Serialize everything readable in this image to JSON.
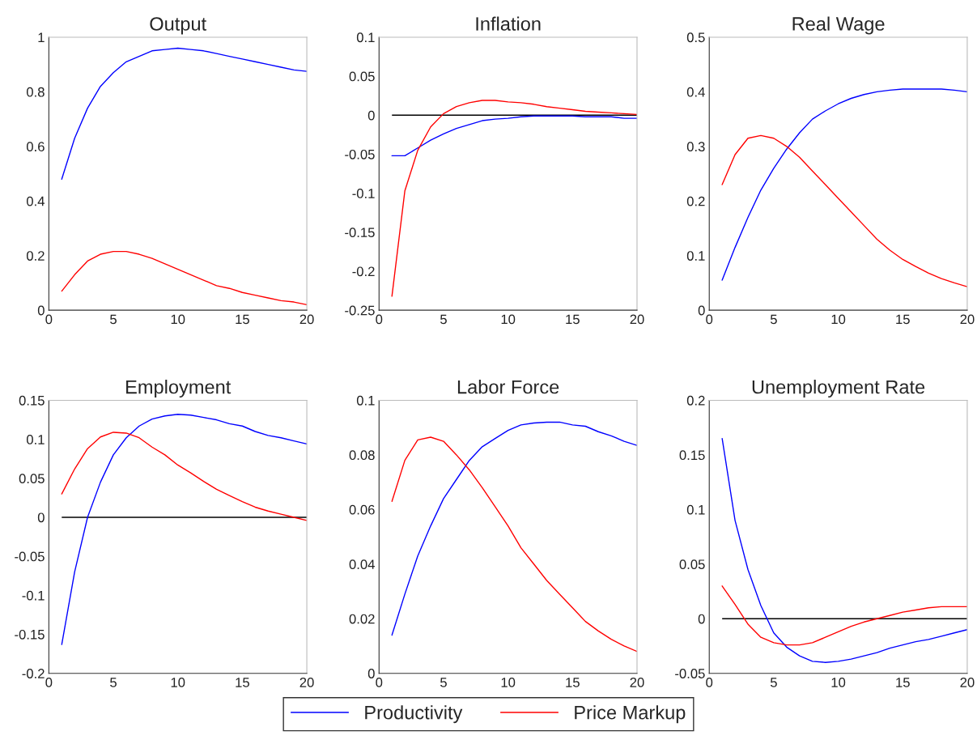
{
  "chart_data": [
    {
      "type": "line",
      "title": "Output",
      "x": [
        1,
        2,
        3,
        4,
        5,
        6,
        7,
        8,
        9,
        10,
        11,
        12,
        13,
        14,
        15,
        16,
        17,
        18,
        19,
        20
      ],
      "xlim": [
        0,
        20
      ],
      "xticks": [
        0,
        5,
        10,
        15,
        20
      ],
      "ylim": [
        0,
        1
      ],
      "yticks": [
        0,
        0.2,
        0.4,
        0.6,
        0.8,
        1
      ],
      "grid": false,
      "legend": "bottom",
      "series": [
        {
          "name": "Productivity",
          "color": "#0000ff",
          "values": [
            0.48,
            0.63,
            0.74,
            0.82,
            0.87,
            0.91,
            0.93,
            0.95,
            0.955,
            0.96,
            0.955,
            0.95,
            0.94,
            0.93,
            0.92,
            0.91,
            0.9,
            0.89,
            0.88,
            0.875
          ]
        },
        {
          "name": "Price Markup",
          "color": "#ff0000",
          "values": [
            0.07,
            0.13,
            0.18,
            0.205,
            0.215,
            0.215,
            0.205,
            0.19,
            0.17,
            0.15,
            0.13,
            0.11,
            0.09,
            0.08,
            0.065,
            0.055,
            0.045,
            0.035,
            0.03,
            0.02
          ]
        }
      ]
    },
    {
      "type": "line",
      "title": "Inflation",
      "x": [
        1,
        2,
        3,
        4,
        5,
        6,
        7,
        8,
        9,
        10,
        11,
        12,
        13,
        14,
        15,
        16,
        17,
        18,
        19,
        20
      ],
      "xlim": [
        0,
        20
      ],
      "xticks": [
        0,
        5,
        10,
        15,
        20
      ],
      "ylim": [
        -0.25,
        0.1
      ],
      "yticks": [
        -0.25,
        -0.2,
        -0.15,
        -0.1,
        -0.05,
        0,
        0.05,
        0.1
      ],
      "grid": false,
      "ref_lines": [
        {
          "axis": "y",
          "value": 0,
          "color": "#000000"
        }
      ],
      "series": [
        {
          "color": "#0000ff",
          "values": [
            -0.052,
            -0.052,
            -0.042,
            -0.032,
            -0.024,
            -0.017,
            -0.012,
            -0.007,
            -0.005,
            -0.004,
            -0.002,
            -0.001,
            -0.001,
            -0.001,
            -0.001,
            -0.002,
            -0.002,
            -0.002,
            -0.004,
            -0.004
          ]
        },
        {
          "color": "#ff0000",
          "values": [
            -0.232,
            -0.097,
            -0.045,
            -0.015,
            0.002,
            0.011,
            0.016,
            0.019,
            0.019,
            0.017,
            0.016,
            0.014,
            0.011,
            0.009,
            0.007,
            0.005,
            0.004,
            0.003,
            0.002,
            0.001
          ]
        }
      ]
    },
    {
      "type": "line",
      "title": "Real Wage",
      "x": [
        1,
        2,
        3,
        4,
        5,
        6,
        7,
        8,
        9,
        10,
        11,
        12,
        13,
        14,
        15,
        16,
        17,
        18,
        19,
        20
      ],
      "xlim": [
        0,
        20
      ],
      "xticks": [
        0,
        5,
        10,
        15,
        20
      ],
      "ylim": [
        0,
        0.5
      ],
      "yticks": [
        0,
        0.1,
        0.2,
        0.3,
        0.4,
        0.5
      ],
      "grid": false,
      "series": [
        {
          "color": "#0000ff",
          "values": [
            0.055,
            0.115,
            0.17,
            0.22,
            0.26,
            0.295,
            0.325,
            0.35,
            0.365,
            0.378,
            0.388,
            0.395,
            0.4,
            0.403,
            0.405,
            0.405,
            0.405,
            0.405,
            0.403,
            0.4
          ]
        },
        {
          "color": "#ff0000",
          "values": [
            0.23,
            0.285,
            0.315,
            0.32,
            0.315,
            0.3,
            0.28,
            0.255,
            0.23,
            0.205,
            0.18,
            0.155,
            0.13,
            0.11,
            0.093,
            0.08,
            0.068,
            0.058,
            0.05,
            0.043
          ]
        }
      ]
    },
    {
      "type": "line",
      "title": "Employment",
      "x": [
        1,
        2,
        3,
        4,
        5,
        6,
        7,
        8,
        9,
        10,
        11,
        12,
        13,
        14,
        15,
        16,
        17,
        18,
        19,
        20
      ],
      "xlim": [
        0,
        20
      ],
      "xticks": [
        0,
        5,
        10,
        15,
        20
      ],
      "ylim": [
        -0.2,
        0.15
      ],
      "yticks": [
        -0.2,
        -0.15,
        -0.1,
        -0.05,
        0,
        0.05,
        0.1,
        0.15
      ],
      "grid": false,
      "ref_lines": [
        {
          "axis": "y",
          "value": 0,
          "color": "#000000"
        }
      ],
      "series": [
        {
          "color": "#0000ff",
          "values": [
            -0.163,
            -0.07,
            0.0,
            0.045,
            0.08,
            0.102,
            0.117,
            0.126,
            0.13,
            0.132,
            0.131,
            0.128,
            0.125,
            0.12,
            0.117,
            0.11,
            0.105,
            0.102,
            0.098,
            0.094
          ]
        },
        {
          "color": "#ff0000",
          "values": [
            0.03,
            0.062,
            0.088,
            0.103,
            0.109,
            0.108,
            0.102,
            0.09,
            0.08,
            0.067,
            0.057,
            0.046,
            0.036,
            0.028,
            0.02,
            0.013,
            0.008,
            0.004,
            0.0,
            -0.004
          ]
        }
      ]
    },
    {
      "type": "line",
      "title": "Labor Force",
      "x": [
        1,
        2,
        3,
        4,
        5,
        6,
        7,
        8,
        9,
        10,
        11,
        12,
        13,
        14,
        15,
        16,
        17,
        18,
        19,
        20
      ],
      "xlim": [
        0,
        20
      ],
      "xticks": [
        0,
        5,
        10,
        15,
        20
      ],
      "ylim": [
        0,
        0.1
      ],
      "yticks": [
        0,
        0.02,
        0.04,
        0.06,
        0.08,
        0.1
      ],
      "grid": false,
      "series": [
        {
          "color": "#0000ff",
          "values": [
            0.014,
            0.029,
            0.043,
            0.054,
            0.064,
            0.071,
            0.078,
            0.083,
            0.086,
            0.089,
            0.091,
            0.0917,
            0.092,
            0.092,
            0.091,
            0.0905,
            0.0885,
            0.087,
            0.085,
            0.0835
          ]
        },
        {
          "color": "#ff0000",
          "values": [
            0.063,
            0.078,
            0.0855,
            0.0865,
            0.085,
            0.08,
            0.0745,
            0.068,
            0.061,
            0.054,
            0.046,
            0.04,
            0.034,
            0.029,
            0.024,
            0.019,
            0.0155,
            0.0125,
            0.01,
            0.008
          ]
        }
      ]
    },
    {
      "type": "line",
      "title": "Unemployment Rate",
      "x": [
        1,
        2,
        3,
        4,
        5,
        6,
        7,
        8,
        9,
        10,
        11,
        12,
        13,
        14,
        15,
        16,
        17,
        18,
        19,
        20
      ],
      "xlim": [
        0,
        20
      ],
      "xticks": [
        0,
        5,
        10,
        15,
        20
      ],
      "ylim": [
        -0.05,
        0.2
      ],
      "yticks": [
        -0.05,
        0,
        0.05,
        0.1,
        0.15,
        0.2
      ],
      "grid": false,
      "ref_lines": [
        {
          "axis": "y",
          "value": 0,
          "color": "#000000"
        }
      ],
      "series": [
        {
          "color": "#0000ff",
          "values": [
            0.165,
            0.09,
            0.045,
            0.012,
            -0.013,
            -0.026,
            -0.034,
            -0.039,
            -0.04,
            -0.039,
            -0.037,
            -0.034,
            -0.031,
            -0.027,
            -0.024,
            -0.021,
            -0.019,
            -0.016,
            -0.013,
            -0.01
          ]
        },
        {
          "color": "#ff0000",
          "values": [
            0.03,
            0.013,
            -0.005,
            -0.017,
            -0.022,
            -0.024,
            -0.024,
            -0.022,
            -0.017,
            -0.012,
            -0.007,
            -0.003,
            0.0,
            0.003,
            0.006,
            0.008,
            0.01,
            0.011,
            0.011,
            0.011
          ]
        }
      ]
    }
  ]
}
